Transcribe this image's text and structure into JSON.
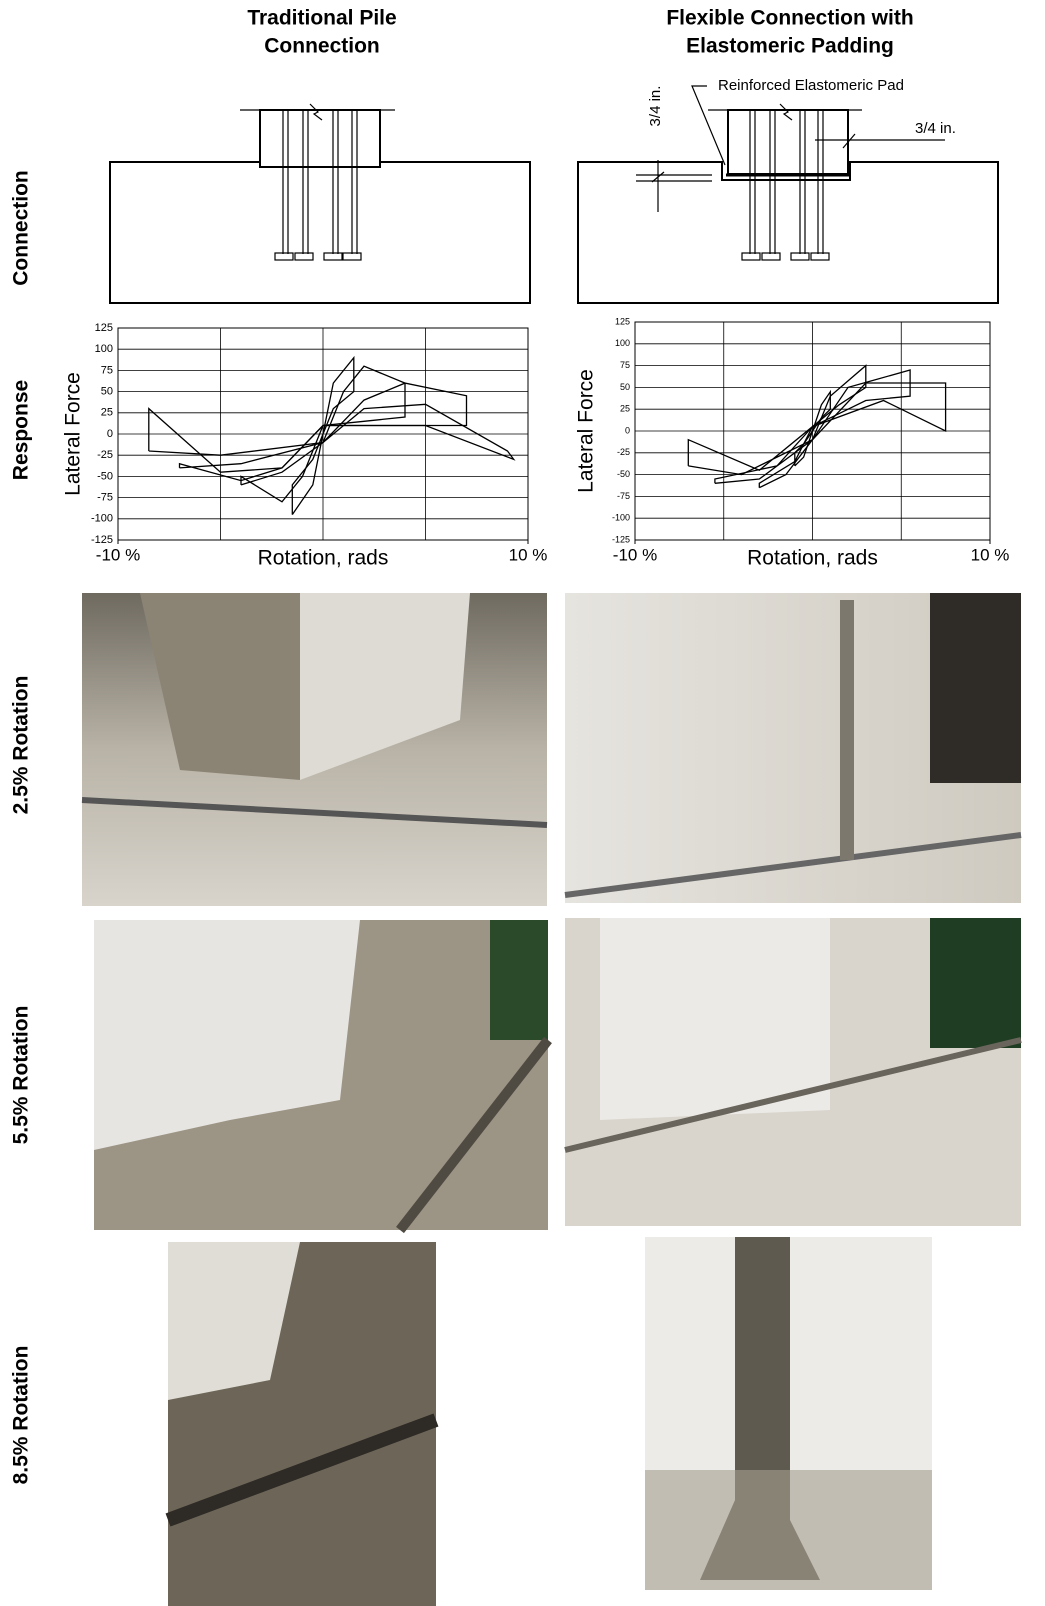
{
  "column_headers": [
    [
      "Traditional Pile",
      "Connection"
    ],
    [
      "Flexible Connection with",
      "Elastomeric Padding"
    ]
  ],
  "row_labels": [
    "Connection",
    "Response",
    "2.5% Rotation",
    "5.5% Rotation",
    "8.5% Rotation"
  ],
  "diagram_labels": {
    "pad": "Reinforced Elastomeric Pad",
    "gap_vertical": "3/4 in.",
    "gap_horizontal": "3/4 in."
  },
  "chart_data": [
    {
      "type": "line",
      "ylabel": "Lateral Force",
      "xlabel": "Rotation, rads",
      "xlim": [
        -10,
        10
      ],
      "ylim": [
        -125,
        125
      ],
      "xticks": [
        {
          "value": -10,
          "label": "-10 %"
        },
        {
          "value": 10,
          "label": "10 %"
        }
      ],
      "xgrid": [
        -10,
        -5,
        0,
        5,
        10
      ],
      "yticks": [
        125,
        100,
        75,
        50,
        25,
        0,
        -25,
        -50,
        -75,
        -100,
        -125
      ],
      "grid": true,
      "color": "#000000",
      "series": [
        {
          "x": [
            -1.5,
            -0.5,
            0,
            0.5,
            1.5,
            1.5,
            0.5,
            0,
            -0.5,
            -1.5,
            -1.5
          ],
          "values": [
            -95,
            -60,
            0,
            60,
            90,
            50,
            30,
            0,
            -30,
            -60,
            -95
          ]
        },
        {
          "x": [
            -4,
            -2,
            0,
            1,
            2,
            4,
            4,
            2,
            0,
            -1,
            -2,
            -4,
            -4
          ],
          "values": [
            -60,
            -45,
            -10,
            50,
            80,
            60,
            20,
            15,
            10,
            -50,
            -80,
            -50,
            -60
          ]
        },
        {
          "x": [
            -7,
            -4,
            0,
            2,
            4,
            7,
            7,
            4,
            0,
            -2,
            -4,
            -7,
            -7
          ],
          "values": [
            -40,
            -35,
            -10,
            40,
            60,
            45,
            10,
            10,
            10,
            -40,
            -55,
            -35,
            -40
          ]
        },
        {
          "x": [
            -8.5,
            -5,
            0,
            2,
            5,
            9,
            9.3,
            5,
            0,
            -2,
            -5,
            -8.5,
            -8.5
          ],
          "values": [
            -20,
            -25,
            -10,
            30,
            35,
            -20,
            -30,
            10,
            10,
            -40,
            -45,
            30,
            -20
          ]
        }
      ]
    },
    {
      "type": "line",
      "ylabel": "Lateral Force",
      "xlabel": "Rotation, rads",
      "xlim": [
        -10,
        10
      ],
      "ylim": [
        -125,
        125
      ],
      "xticks": [
        {
          "value": -10,
          "label": "-10 %"
        },
        {
          "value": 10,
          "label": "10 %"
        }
      ],
      "xgrid": [
        -10,
        -5,
        0,
        5,
        10
      ],
      "yticks": [
        125,
        100,
        75,
        50,
        25,
        0,
        -25,
        -50,
        -75,
        -100,
        -125
      ],
      "grid": true,
      "color": "#000000",
      "series": [
        {
          "x": [
            -1,
            -0.5,
            0,
            0.5,
            1,
            1,
            0.5,
            0,
            -0.5,
            -1,
            -1
          ],
          "values": [
            -40,
            -30,
            0,
            30,
            45,
            25,
            15,
            0,
            -15,
            -25,
            -40
          ]
        },
        {
          "x": [
            -3,
            -1.5,
            0,
            1,
            3,
            3,
            1.5,
            0,
            -1,
            -3,
            -3
          ],
          "values": [
            -65,
            -50,
            -10,
            40,
            75,
            50,
            30,
            5,
            -35,
            -60,
            -65
          ]
        },
        {
          "x": [
            -5.5,
            -3,
            0,
            2,
            5.5,
            5.5,
            3,
            0,
            -2,
            -5.5,
            -5.5
          ],
          "values": [
            -60,
            -55,
            -10,
            50,
            70,
            40,
            35,
            5,
            -40,
            -55,
            -60
          ]
        },
        {
          "x": [
            -7,
            -4,
            0,
            3,
            7.5,
            7.5,
            4,
            0,
            -3,
            -7,
            -7
          ],
          "values": [
            -40,
            -50,
            -10,
            55,
            55,
            0,
            35,
            5,
            -45,
            -10,
            -40
          ]
        }
      ]
    }
  ]
}
